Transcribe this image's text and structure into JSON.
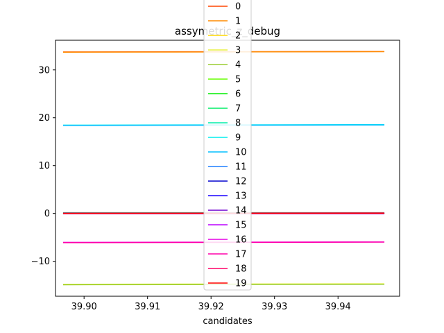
{
  "chart_data": {
    "type": "line",
    "title": "assymetric_z_debug",
    "xlabel": "candidates",
    "ylabel": "",
    "xlim": [
      39.8955,
      39.9497
    ],
    "ylim": [
      -17.3,
      36.2
    ],
    "xticks": [
      39.9,
      39.91,
      39.92,
      39.93,
      39.94
    ],
    "xtick_labels": [
      "39.90",
      "39.91",
      "39.92",
      "39.93",
      "39.94"
    ],
    "yticks": [
      -10,
      0,
      10,
      20,
      30
    ],
    "ytick_labels": [
      "−10",
      "0",
      "10",
      "20",
      "30"
    ],
    "grid": false,
    "legend_position": "top-center",
    "x": [
      39.8967,
      39.9473
    ],
    "series": [
      {
        "name": "0",
        "color": "#ff4500",
        "values": [
          33.75,
          33.85
        ]
      },
      {
        "name": "1",
        "color": "#ff8c00",
        "values": [
          33.7,
          33.8
        ]
      },
      {
        "name": "2",
        "color": "#ffd700",
        "values": [
          -14.85,
          -14.75
        ]
      },
      {
        "name": "3",
        "color": "#e8f043",
        "values": [
          -14.8,
          -14.7
        ]
      },
      {
        "name": "4",
        "color": "#9acd32",
        "values": [
          -14.9,
          -14.8
        ]
      },
      {
        "name": "5",
        "color": "#66ff00",
        "values": [
          0.15,
          0.15
        ]
      },
      {
        "name": "6",
        "color": "#00ee00",
        "values": [
          0.1,
          0.1
        ]
      },
      {
        "name": "7",
        "color": "#00ee66",
        "values": [
          0.05,
          0.05
        ]
      },
      {
        "name": "8",
        "color": "#00eeaa",
        "values": [
          0.0,
          0.0
        ]
      },
      {
        "name": "9",
        "color": "#00eeee",
        "values": [
          18.45,
          18.55
        ]
      },
      {
        "name": "10",
        "color": "#00bfff",
        "values": [
          18.4,
          18.5
        ]
      },
      {
        "name": "11",
        "color": "#1e7fff",
        "values": [
          0.1,
          0.1
        ]
      },
      {
        "name": "12",
        "color": "#0000cd",
        "values": [
          0.05,
          0.05
        ]
      },
      {
        "name": "13",
        "color": "#1a00ff",
        "values": [
          0.0,
          0.0
        ]
      },
      {
        "name": "14",
        "color": "#7000d0",
        "values": [
          -0.05,
          -0.05
        ]
      },
      {
        "name": "15",
        "color": "#bb00ff",
        "values": [
          0.0,
          0.0
        ]
      },
      {
        "name": "16",
        "color": "#e600e6",
        "values": [
          -6.05,
          -5.95
        ]
      },
      {
        "name": "17",
        "color": "#ff00aa",
        "values": [
          -6.1,
          -6.0
        ]
      },
      {
        "name": "18",
        "color": "#ff0066",
        "values": [
          0.05,
          0.1
        ]
      },
      {
        "name": "19",
        "color": "#ff0000",
        "values": [
          0.0,
          0.05
        ]
      }
    ]
  }
}
